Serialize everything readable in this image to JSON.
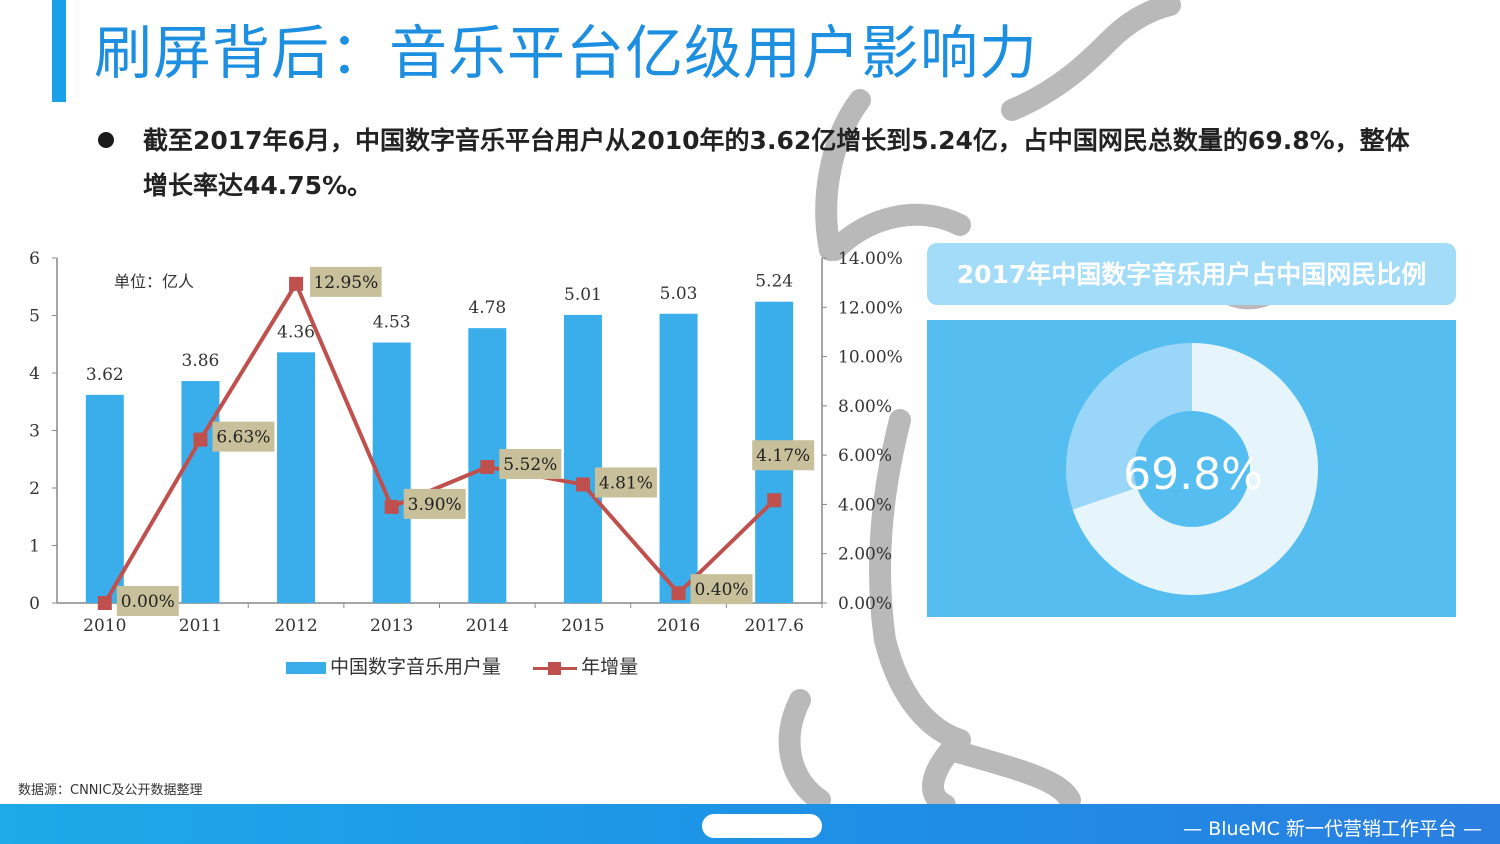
{
  "page": {
    "title": "刷屏背后：音乐平台亿级用户影响力",
    "bullet": "截至2017年6月，中国数字音乐平台用户从2010年的3.62亿增长到5.24亿，占中国网民总数量的69.8%，整体增长率达44.75%。",
    "source": "数据源：CNNIC及公开数据整理",
    "footer": "— BlueMC 新一代营销工作平台 —"
  },
  "colors": {
    "title": "#1d8fe0",
    "bar": "#3aaeea",
    "line": "#c0504d",
    "label_box": "#c7c09a",
    "pie_bg": "#56bdf0",
    "pie_main": "#e6f5fc",
    "pie_rest": "#99d6f7"
  },
  "chart_data": [
    {
      "type": "bar+line",
      "categories": [
        "2010",
        "2011",
        "2012",
        "2013",
        "2014",
        "2015",
        "2016",
        "2017.6"
      ],
      "unit_note": "单位：亿人",
      "series": [
        {
          "name": "中国数字音乐用户量",
          "type": "bar",
          "axis": "left",
          "values": [
            3.62,
            3.86,
            4.36,
            4.53,
            4.78,
            5.01,
            5.03,
            5.24
          ],
          "labels": [
            "3.62",
            "3.86",
            "4.36",
            "4.53",
            "4.78",
            "5.01",
            "5.03",
            "5.24"
          ]
        },
        {
          "name": "年增量",
          "type": "line",
          "axis": "right",
          "values": [
            0.0,
            6.63,
            12.95,
            3.9,
            5.52,
            4.81,
            0.4,
            4.17
          ],
          "labels": [
            "0.00%",
            "6.63%",
            "12.95%",
            "3.90%",
            "5.52%",
            "4.81%",
            "0.40%",
            "4.17%"
          ]
        }
      ],
      "y_left": {
        "range": [
          0,
          6
        ],
        "ticks": [
          "0",
          "1",
          "2",
          "3",
          "4",
          "5",
          "6"
        ]
      },
      "y_right": {
        "range": [
          0,
          14
        ],
        "ticks": [
          "0.00%",
          "2.00%",
          "4.00%",
          "6.00%",
          "8.00%",
          "10.00%",
          "12.00%",
          "14.00%"
        ]
      },
      "legend": "bottom",
      "grid": false
    },
    {
      "type": "pie",
      "title": "2017年中国数字音乐用户占中国网民比例",
      "values": [
        69.8,
        30.2
      ],
      "center_label": "69.8%"
    }
  ]
}
